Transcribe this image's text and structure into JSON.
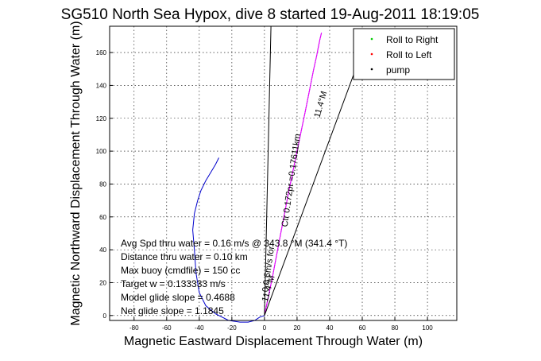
{
  "chart_data": {
    "type": "line",
    "title": "SG510 North Sea Hypox, dive 8 started 19-Aug-2011 18:19:05",
    "xlabel": "Magnetic Eastward Displacement Through Water (m)",
    "ylabel": "Magnetic Northward Displacement Through Water (m)",
    "xlim": [
      -95,
      118
    ],
    "ylim": [
      -3,
      176
    ],
    "xticks": [
      -80,
      -60,
      -40,
      -20,
      0,
      20,
      40,
      60,
      80,
      100
    ],
    "yticks": [
      0,
      20,
      40,
      60,
      80,
      100,
      120,
      140,
      160
    ],
    "grid": true,
    "legend_position": "top-right",
    "legend": [
      {
        "label": "Roll to Right",
        "color": "#00cc00"
      },
      {
        "label": "Roll to Left",
        "color": "#ff0000"
      },
      {
        "label": "pump",
        "color": "#000000"
      }
    ],
    "series": [
      {
        "color": "#0000cc",
        "style": "solid",
        "x": [
          0,
          -3,
          -6,
          -10,
          -15,
          -22,
          -30,
          -36,
          -40,
          -42,
          -43,
          -44,
          -43,
          -41,
          -39,
          -36,
          -33,
          -30,
          -28
        ],
        "y": [
          0,
          -1,
          -3,
          -4,
          -4,
          -3,
          1,
          6,
          14,
          26,
          40,
          52,
          62,
          70,
          76,
          82,
          87,
          92,
          96
        ]
      },
      {
        "color": "#0000cc",
        "style": "solid",
        "x": [
          0,
          5,
          10,
          15,
          20,
          25,
          28,
          30,
          32,
          33,
          34,
          35
        ],
        "y": [
          0,
          24,
          50,
          76,
          100,
          124,
          139,
          149,
          158,
          163,
          168,
          172
        ]
      },
      {
        "color": "#ff00ff",
        "style": "solid",
        "x": [
          0,
          5,
          10,
          15,
          20,
          25,
          28,
          30,
          32,
          33,
          34,
          35
        ],
        "y": [
          0,
          24,
          50,
          76,
          100,
          124,
          139,
          149,
          158,
          163,
          168,
          172
        ]
      },
      {
        "color": "#000000",
        "style": "solid",
        "x": [
          0,
          4
        ],
        "y": [
          0,
          176
        ]
      },
      {
        "color": "#000000",
        "style": "solid",
        "x": [
          0,
          56
        ],
        "y": [
          0,
          150
        ]
      }
    ],
    "annotations": [
      {
        "text": "11.4°M",
        "x": 36,
        "y": 128,
        "angle": -74
      },
      {
        "text": "Ctr 0.172pr  =0.17611km",
        "x": 18,
        "y": 82,
        "angle": -82
      },
      {
        "text": "0.0.6m/s for",
        "x": 4,
        "y": 28,
        "angle": -82
      },
      {
        "text": "11.4°M",
        "x": 4,
        "y": 16,
        "angle": -74
      }
    ]
  },
  "stats": [
    "Avg Spd thru water =  0.16 m/s @ 343.8   °M (341.4 °T)",
    "Distance thru water =  0.10 km",
    "Max buoy (cmdfile) = 150 cc",
    "Target w = 0.133333 m/s",
    "Model glide slope = 0.4688",
    "Net glide slope = 1.1845"
  ]
}
